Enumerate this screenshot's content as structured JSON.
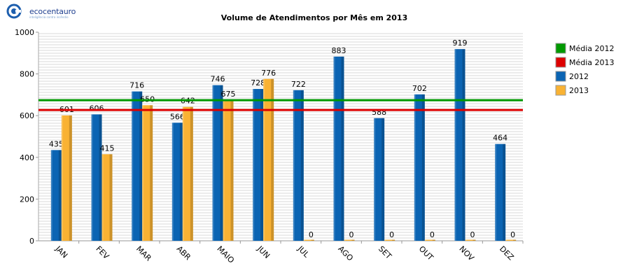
{
  "brand": {
    "name": "ecocentauro",
    "tagline": "inteligência contra incêndio"
  },
  "chart_data": {
    "type": "bar",
    "title": "Volume de Atendimentos por Mês em 2013",
    "xlabel": "",
    "ylabel": "",
    "ylim": [
      0,
      1000
    ],
    "yticks": [
      0,
      200,
      400,
      600,
      800,
      1000
    ],
    "categories": [
      "JAN",
      "FEV",
      "MAR",
      "ABR",
      "MAIO",
      "JUN",
      "JUL",
      "AGO",
      "SET",
      "OUT",
      "NOV",
      "DEZ"
    ],
    "series": [
      {
        "name": "2012",
        "color": "#0b64b3",
        "values": [
          435,
          606,
          716,
          566,
          746,
          728,
          722,
          883,
          588,
          702,
          919,
          464
        ]
      },
      {
        "name": "2013",
        "color": "#f9b233",
        "values": [
          601,
          415,
          650,
          642,
          675,
          776,
          0,
          0,
          0,
          0,
          0,
          0
        ]
      }
    ],
    "reference_lines": [
      {
        "name": "Média 2012",
        "color": "#009900",
        "value": 674
      },
      {
        "name": "Média 2013",
        "color": "#dd0000",
        "value": 627
      }
    ],
    "legend_position": "right",
    "grid": true
  }
}
